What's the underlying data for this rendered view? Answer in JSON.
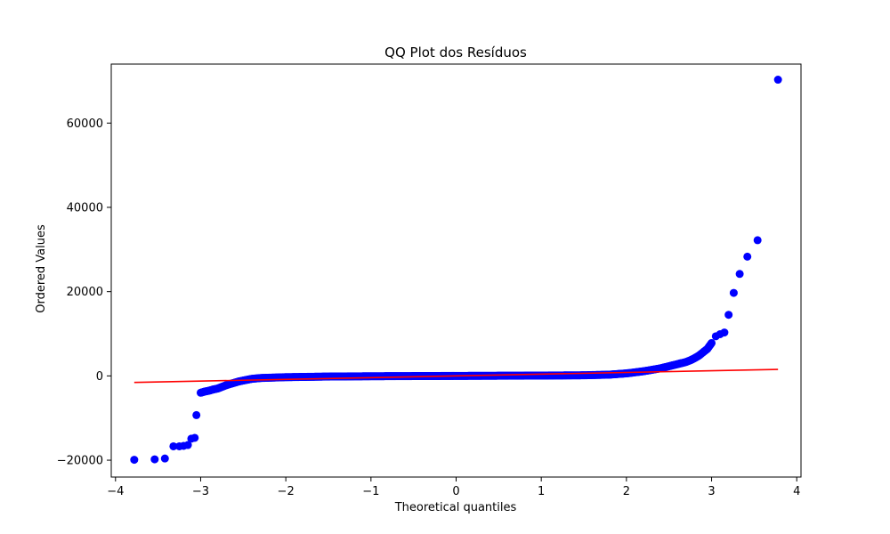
{
  "chart_data": {
    "type": "scatter",
    "title": "QQ Plot dos Resíduos",
    "xlabel": "Theoretical quantiles",
    "ylabel": "Ordered Values",
    "xlim": [
      -4.05,
      4.05
    ],
    "ylim": [
      -24000,
      74000
    ],
    "xticks": [
      -4,
      -3,
      -2,
      -1,
      0,
      1,
      2,
      3,
      4
    ],
    "xtick_labels": [
      "−4",
      "−3",
      "−2",
      "−1",
      "0",
      "1",
      "2",
      "3",
      "4"
    ],
    "yticks": [
      -20000,
      0,
      20000,
      40000,
      60000
    ],
    "ytick_labels": [
      "−20000",
      "0",
      "20000",
      "40000",
      "60000"
    ],
    "grid": false,
    "colors": {
      "points": "#0000ff",
      "line": "#ff0000"
    },
    "fit_line": {
      "x": [
        -3.78,
        3.78
      ],
      "y": [
        -1550,
        1550
      ]
    },
    "outliers": {
      "x": [
        -3.78,
        -3.54,
        -3.42,
        -3.32,
        -3.25,
        -3.2,
        -3.15,
        -3.11,
        -3.07,
        -3.05,
        3.05,
        3.1,
        3.15,
        3.2,
        3.26,
        3.33,
        3.42,
        3.54,
        3.78
      ],
      "y": [
        -19900,
        -19800,
        -19600,
        -16700,
        -16700,
        -16600,
        -16400,
        -14900,
        -14700,
        -9300,
        9400,
        9900,
        10300,
        14500,
        19700,
        24200,
        28300,
        32200,
        70300
      ]
    },
    "body_anchors": {
      "x": [
        -3.0,
        -2.95,
        -2.9,
        -2.85,
        -2.8,
        -2.75,
        -2.7,
        -2.65,
        -2.6,
        -2.55,
        -2.5,
        -2.45,
        -2.4,
        -2.3,
        -2.0,
        -1.5,
        -1.0,
        0.0,
        1.0,
        1.5,
        1.8,
        2.0,
        2.2,
        2.4,
        2.5,
        2.6,
        2.7,
        2.75,
        2.8,
        2.85,
        2.9,
        2.95,
        3.0
      ],
      "y": [
        -4000,
        -3700,
        -3500,
        -3200,
        -3000,
        -2600,
        -2200,
        -1900,
        -1600,
        -1300,
        -1100,
        -900,
        -700,
        -500,
        -300,
        -150,
        -80,
        0,
        80,
        150,
        300,
        600,
        1100,
        1800,
        2300,
        2800,
        3300,
        3700,
        4200,
        4800,
        5600,
        6400,
        7800
      ]
    },
    "body_point_count": 600
  }
}
